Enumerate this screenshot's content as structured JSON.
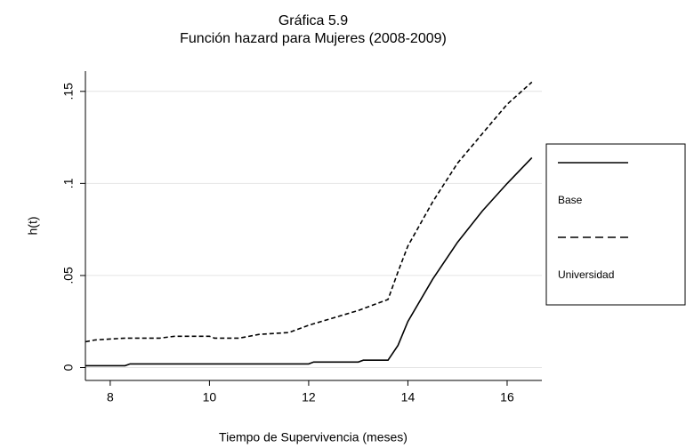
{
  "chart_data": {
    "type": "line",
    "title": "Gráfica 5.9",
    "subtitle": "Función hazard para Mujeres (2008-2009)",
    "x_label": "Tiempo de Supervivencia (meses)",
    "y_label": "h(t)",
    "xlim": [
      7.5,
      16.7
    ],
    "xticks": [
      8,
      10,
      12,
      14,
      16
    ],
    "ylim": [
      -0.007,
      0.161
    ],
    "yticks": [
      0,
      {
        "value": 0.05,
        "label": ".05"
      },
      {
        "value": 0.1,
        "label": ".1"
      },
      {
        "value": 0.15,
        "label": ".15"
      }
    ],
    "grid": true,
    "legend": "right",
    "series": [
      {
        "name": "Base",
        "color": "#000000",
        "style": "solid",
        "x": [
          7.5,
          8.3,
          8.4,
          12,
          12.1,
          13,
          13.1,
          13.6,
          13.8,
          14,
          14.5,
          15,
          15.5,
          16,
          16.5
        ],
        "values": [
          0.001,
          0.001,
          0.002,
          0.002,
          0.003,
          0.003,
          0.004,
          0.004,
          0.012,
          0.025,
          0.048,
          0.068,
          0.085,
          0.1,
          0.114
        ]
      },
      {
        "name": "Universidad",
        "color": "#000000",
        "style": "dashed",
        "x": [
          7.5,
          7.7,
          8.3,
          9,
          9.3,
          10,
          10.1,
          10.6,
          11,
          11.6,
          12,
          12.5,
          13,
          13.5,
          13.6,
          13.8,
          14,
          14.5,
          15,
          15.5,
          16,
          16.5
        ],
        "values": [
          0.014,
          0.015,
          0.016,
          0.016,
          0.017,
          0.017,
          0.016,
          0.016,
          0.018,
          0.019,
          0.023,
          0.027,
          0.031,
          0.036,
          0.037,
          0.052,
          0.066,
          0.09,
          0.111,
          0.127,
          0.143,
          0.155
        ]
      }
    ]
  }
}
